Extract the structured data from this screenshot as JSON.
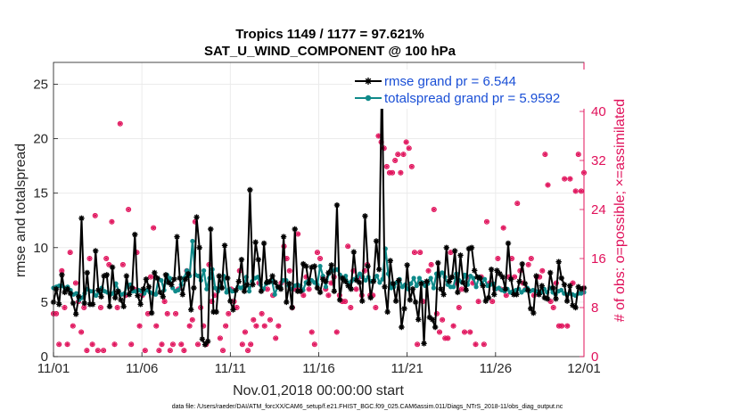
{
  "chart_data": {
    "type": "line",
    "title_line1": "Tropics 1149 / 1177 = 97.621%",
    "title_line2": "SAT_U_WIND_COMPONENT @ 100 hPa",
    "xlabel": "Nov.01,2018 00:00:00 start",
    "ylabel_left": "rmse and totalspread",
    "ylabel_right": "# of obs: o=possible; ×=assimilated",
    "footnote": "data file: /Users/raeder/DAI/ATM_forcXX/CAM6_setup/f.e21.FHIST_BGC.f09_025.CAM6assim.011/Diags_NTrS_2018-11/obs_diag_output.nc",
    "x_ticks": [
      "11/01",
      "11/06",
      "11/11",
      "11/16",
      "11/21",
      "11/26",
      "12/01"
    ],
    "xlim": [
      0,
      30
    ],
    "ylim_left": [
      0,
      27
    ],
    "yticks_left": [
      0,
      5,
      10,
      15,
      20,
      25
    ],
    "ylim_right": [
      0,
      48
    ],
    "yticks_right": [
      0,
      8,
      16,
      24,
      32,
      40
    ],
    "colors": {
      "rmse": "#000000",
      "spread": "#0f8a8a",
      "obs": "#e0105a",
      "legend_text": "#1a4fd6",
      "grid": "#ebebeb"
    },
    "series": [
      {
        "name": "rmse grand pr = 6.544",
        "values": [
          5.0,
          6.2,
          4.8,
          7.5,
          5.9,
          6.2,
          5.8,
          4.9,
          3.9,
          5.5,
          12.7,
          4.9,
          7.7,
          4.8,
          4.8,
          9.7,
          6.1,
          5.5,
          7.4,
          7.5,
          4.6,
          8.2,
          5.4,
          6.0,
          5.2,
          4.6,
          7.4,
          5.7,
          6.3,
          11.2,
          5.6,
          4.8,
          6.2,
          7.1,
          6.4,
          4.0,
          7.7,
          7.2,
          5.9,
          5.5,
          7.5,
          6.8,
          6.6,
          7.1,
          11.0,
          7.2,
          5.7,
          7.1,
          7.6,
          4.3,
          6.3,
          12.8,
          10.0,
          1.6,
          1.1,
          1.4,
          11.7,
          4.1,
          4.1,
          7.4,
          6.3,
          10.2,
          7.2,
          5.1,
          4.3,
          6.1,
          6.9,
          8.9,
          6.0,
          6.6,
          15.3,
          6.6,
          10.5,
          8.9,
          6.0,
          10.4,
          6.8,
          6.9,
          7.4,
          6.8,
          6.4,
          6.2,
          11.0,
          5.0,
          6.7,
          4.5,
          11.7,
          6.0,
          6.0,
          8.5,
          8.3,
          6.7,
          8.2,
          8.3,
          6.3,
          5.9,
          7.1,
          6.9,
          7.7,
          8.4,
          6.0,
          13.9,
          5.2,
          7.2,
          6.9,
          6.5,
          6.2,
          9.6,
          7.0,
          6.8,
          5.1,
          12.9,
          8.3,
          5.4,
          6.9,
          10.6,
          8.0,
          26.0,
          6.4,
          4.1,
          8.8,
          6.7,
          5.1,
          7.0,
          2.7,
          4.4,
          8.4,
          5.2,
          6.2,
          5.0,
          3.4,
          6.7,
          1.2,
          6.9,
          3.6,
          3.4,
          2.7,
          8.6,
          6.2,
          5.7,
          10.0,
          6.9,
          7.3,
          9.7,
          5.9,
          9.3,
          6.8,
          6.1,
          9.9,
          10.0,
          7.9,
          7.3,
          7.2,
          6.5,
          5.1,
          5.4,
          8.0,
          5.7,
          7.9,
          7.6,
          7.3,
          6.2,
          10.4,
          7.1,
          5.7,
          5.7,
          6.9,
          8.5,
          6.7,
          6.1,
          4.4,
          4.0,
          7.4,
          5.7,
          6.5,
          5.4,
          5.3,
          7.7,
          6.3,
          5.3,
          8.7,
          7.2,
          6.6,
          5.1,
          6.5,
          4.7,
          4.5,
          6.4,
          6.2,
          6.3
        ]
      },
      {
        "name": "totalspread grand pr = 5.9592",
        "values": [
          6.3,
          6.4,
          6.5,
          6.5,
          6.3,
          6.4,
          6.1,
          5.7,
          5.8,
          5.2,
          5.4,
          5.8,
          6.2,
          6.0,
          6.0,
          5.6,
          5.9,
          6.3,
          6.0,
          5.9,
          5.7,
          5.8,
          6.7,
          6.0,
          5.7,
          5.8,
          6.5,
          6.6,
          6.0,
          6.0,
          6.1,
          6.0,
          5.8,
          6.1,
          5.9,
          5.8,
          5.7,
          7.1,
          7.0,
          6.1,
          7.5,
          7.2,
          6.3,
          6.0,
          6.1,
          6.6,
          7.2,
          7.9,
          7.4,
          10.6,
          7.5,
          7.4,
          7.0,
          7.9,
          6.2,
          7.2,
          8.0,
          6.3,
          6.0,
          6.5,
          7.4,
          5.9,
          6.2,
          6.0,
          6.0,
          6.4,
          6.3,
          6.4,
          7.3,
          6.0,
          6.9,
          7.2,
          7.3,
          6.6,
          6.2,
          6.7,
          6.8,
          7.0,
          5.7,
          6.4,
          6.4,
          7.0,
          7.0,
          6.5,
          6.2,
          6.5,
          6.6,
          6.5,
          6.1,
          6.8,
          7.0,
          7.0,
          6.8,
          6.6,
          8.3,
          7.4,
          6.4,
          7.6,
          8.0,
          7.9,
          8.0,
          7.5,
          7.1,
          7.4,
          6.7,
          6.9,
          7.1,
          7.3,
          7.6,
          7.3,
          7.0,
          7.3,
          6.9,
          7.0,
          7.4,
          6.8,
          7.1,
          9.9,
          7.6,
          6.3,
          6.4,
          6.8,
          7.1,
          6.4,
          6.6,
          6.2,
          6.7,
          7.2,
          6.5,
          7.2,
          6.8,
          6.5,
          6.7,
          7.2,
          6.3,
          7.6,
          7.4,
          7.7,
          7.3,
          6.6,
          6.4,
          6.4,
          7.6,
          7.0,
          6.8,
          7.5,
          6.6,
          7.4,
          7.2,
          6.4,
          7.3,
          6.7,
          7.1,
          6.5,
          6.6,
          6.7,
          6.2,
          6.3,
          6.1,
          6.0,
          6.2,
          5.9,
          6.0,
          6.1,
          6.2,
          5.9,
          6.1,
          6.3,
          6.0,
          6.1,
          6.0,
          5.7,
          5.9,
          6.2,
          5.9,
          6.3,
          5.9,
          5.7,
          6.0,
          6.1,
          5.8,
          5.7,
          5.8,
          5.7,
          5.6,
          5.8,
          5.8,
          5.9
        ]
      },
      {
        "name": "obs_possible",
        "values": [
          7,
          7,
          2,
          14,
          8,
          2,
          17,
          5,
          12,
          9,
          4,
          8,
          1,
          16,
          2,
          23,
          1,
          8,
          1,
          16,
          15,
          22,
          2,
          8,
          38,
          15,
          10,
          24,
          2,
          11,
          17,
          5,
          10,
          1,
          7,
          13,
          21,
          5,
          1,
          2,
          9,
          7,
          1,
          2,
          7,
          11,
          2,
          1,
          14,
          5,
          6,
          22,
          2,
          8,
          5,
          2,
          15,
          9,
          10,
          11,
          3,
          1,
          5,
          7,
          11,
          9,
          8,
          14,
          2,
          4,
          1,
          2,
          6,
          5,
          12,
          7,
          5,
          11,
          6,
          10,
          3,
          5,
          12,
          18,
          16,
          14,
          8,
          11,
          20,
          11,
          10,
          13,
          11,
          4,
          2,
          17,
          16,
          13,
          11,
          10,
          12,
          13,
          4,
          10,
          9,
          9,
          18,
          8,
          14,
          11,
          13,
          10,
          14,
          15,
          10,
          10,
          8,
          36,
          35,
          34,
          31,
          30,
          30,
          32,
          33,
          30,
          33,
          35,
          34,
          31,
          17,
          2,
          17,
          9,
          12,
          14,
          15,
          24,
          7,
          4,
          6,
          3,
          3,
          17,
          5,
          12,
          8,
          11,
          4,
          13,
          4,
          12,
          2,
          9,
          13,
          2,
          22,
          12,
          9,
          11,
          16,
          11,
          21,
          10,
          13,
          16,
          13,
          25,
          14,
          12,
          11,
          15,
          16,
          10,
          13,
          13,
          14,
          33,
          28,
          9,
          8,
          12,
          5,
          5,
          29,
          5,
          29,
          12,
          27,
          33,
          27,
          30
        ]
      }
    ]
  }
}
